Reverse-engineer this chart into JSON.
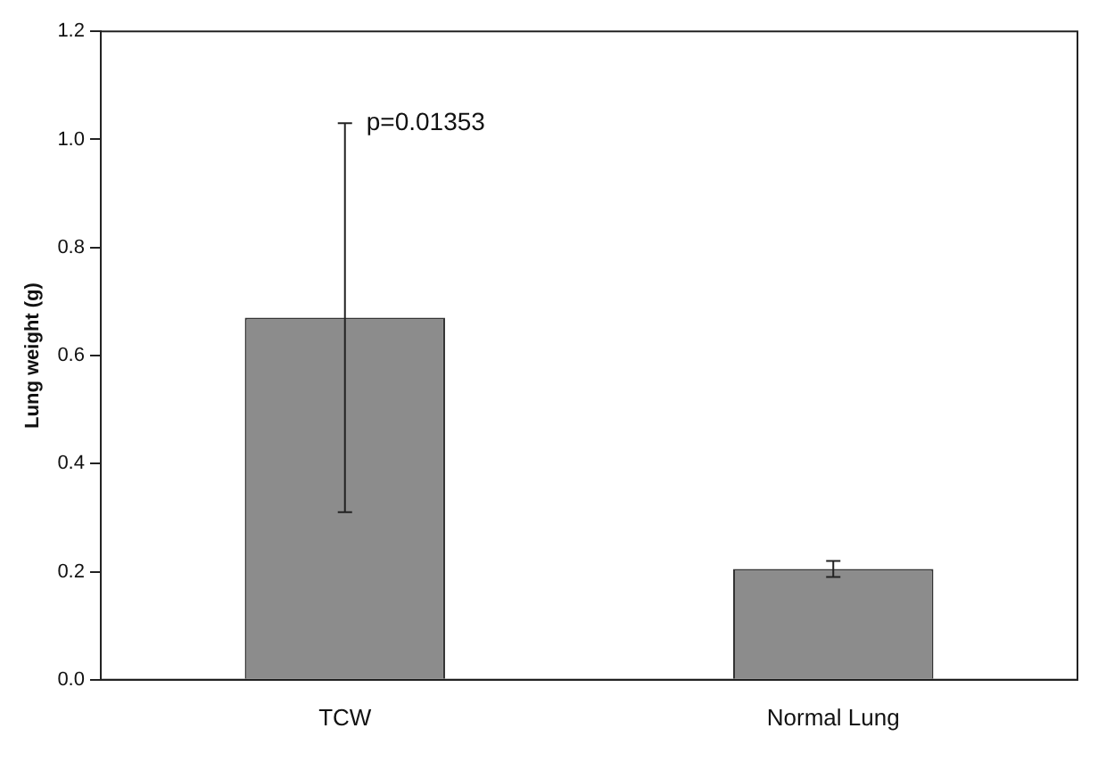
{
  "chart_data": {
    "type": "bar",
    "ylabel": "Lung weight (g)",
    "categories": [
      "TCW",
      "Normal Lung"
    ],
    "values": [
      0.67,
      0.205
    ],
    "errors": [
      0.36,
      0.015
    ],
    "color": "#8c8c8c",
    "ylim": [
      0,
      1.2
    ],
    "yticks": [
      {
        "value": 0,
        "label": "0.0"
      },
      {
        "value": 0.2,
        "label": "0.2"
      },
      {
        "value": 0.4,
        "label": "0.4"
      },
      {
        "value": 0.6,
        "label": "0.6"
      },
      {
        "value": 0.8,
        "label": "0.8"
      },
      {
        "value": 1,
        "label": "1.0"
      },
      {
        "value": 1.2,
        "label": "1.2"
      }
    ],
    "grid": false,
    "annotations": [
      {
        "text": "p=0.01353",
        "x": "TCW",
        "y": 1.03
      }
    ]
  }
}
